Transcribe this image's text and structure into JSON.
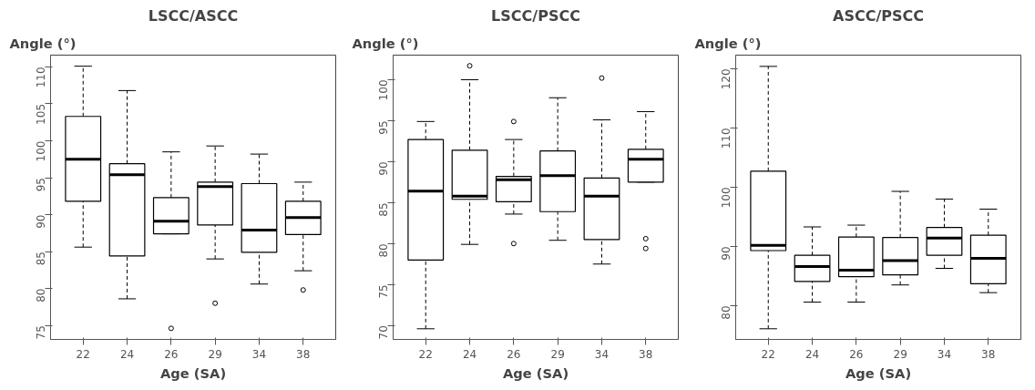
{
  "chart_data": [
    {
      "type": "box",
      "title": "LSCC/ASCC",
      "xlabel": "Age (SA)",
      "ylabel": "Angle (°)",
      "categories": [
        "22",
        "24",
        "26",
        "29",
        "34",
        "38"
      ],
      "ylim": [
        73.1,
        111.6
      ],
      "yticks": [
        75,
        80,
        85,
        90,
        95,
        100,
        105,
        110
      ],
      "grid": false,
      "color": "#000000",
      "boxes": [
        {
          "low": 85.6,
          "q1": 91.8,
          "median": 97.5,
          "q3": 103.3,
          "high": 110.1
        },
        {
          "low": 78.6,
          "q1": 84.4,
          "median": 95.4,
          "q3": 96.9,
          "high": 106.8
        },
        {
          "low": 87.4,
          "q1": 87.4,
          "median": 89.1,
          "q3": 92.3,
          "high": 98.5,
          "outliers": [
            74.6
          ]
        },
        {
          "low": 84.0,
          "q1": 88.6,
          "median": 93.8,
          "q3": 94.4,
          "high": 99.3,
          "outliers": [
            78.0
          ]
        },
        {
          "low": 80.6,
          "q1": 84.9,
          "median": 87.9,
          "q3": 94.2,
          "high": 98.2
        },
        {
          "low": 82.4,
          "q1": 87.3,
          "median": 89.6,
          "q3": 91.8,
          "high": 94.4,
          "outliers": [
            79.8
          ]
        }
      ]
    },
    {
      "type": "box",
      "title": "LSCC/PSCC",
      "xlabel": "Age (SA)",
      "ylabel": "Angle (°)",
      "categories": [
        "22",
        "24",
        "26",
        "29",
        "34",
        "38"
      ],
      "ylim": [
        68.3,
        103.0
      ],
      "yticks": [
        70,
        75,
        80,
        85,
        90,
        95,
        100
      ],
      "grid": false,
      "color": "#000000",
      "boxes": [
        {
          "low": 69.6,
          "q1": 78.0,
          "median": 86.4,
          "q3": 92.7,
          "high": 94.9
        },
        {
          "low": 79.9,
          "q1": 85.4,
          "median": 85.8,
          "q3": 91.4,
          "high": 100.0,
          "outliers": [
            101.7
          ]
        },
        {
          "low": 83.6,
          "q1": 85.1,
          "median": 87.8,
          "q3": 88.2,
          "high": 92.7,
          "outliers": [
            94.9,
            80.0
          ]
        },
        {
          "low": 80.4,
          "q1": 83.9,
          "median": 88.3,
          "q3": 91.3,
          "high": 97.8
        },
        {
          "low": 77.5,
          "q1": 80.5,
          "median": 85.8,
          "q3": 88.0,
          "high": 95.1,
          "outliers": [
            100.2
          ]
        },
        {
          "low": 87.5,
          "q1": 87.5,
          "median": 90.3,
          "q3": 91.5,
          "high": 96.1,
          "outliers": [
            80.6,
            79.4
          ]
        }
      ]
    },
    {
      "type": "box",
      "title": "ASCC/PSCC",
      "xlabel": "Age (SA)",
      "ylabel": "Angle (°)",
      "categories": [
        "22",
        "24",
        "26",
        "29",
        "34",
        "38"
      ],
      "ylim": [
        74.3,
        122.3
      ],
      "yticks": [
        80,
        90,
        100,
        110,
        120
      ],
      "grid": false,
      "color": "#000000",
      "boxes": [
        {
          "low": 76.1,
          "q1": 89.3,
          "median": 90.2,
          "q3": 102.7,
          "high": 120.4
        },
        {
          "low": 80.6,
          "q1": 84.1,
          "median": 86.6,
          "q3": 88.5,
          "high": 93.3
        },
        {
          "low": 80.6,
          "q1": 84.9,
          "median": 86.0,
          "q3": 91.6,
          "high": 93.6
        },
        {
          "low": 83.5,
          "q1": 85.2,
          "median": 87.6,
          "q3": 91.5,
          "high": 99.3
        },
        {
          "low": 86.3,
          "q1": 88.5,
          "median": 91.4,
          "q3": 93.2,
          "high": 98.0
        },
        {
          "low": 82.2,
          "q1": 83.7,
          "median": 88.0,
          "q3": 91.9,
          "high": 96.3
        }
      ]
    }
  ]
}
